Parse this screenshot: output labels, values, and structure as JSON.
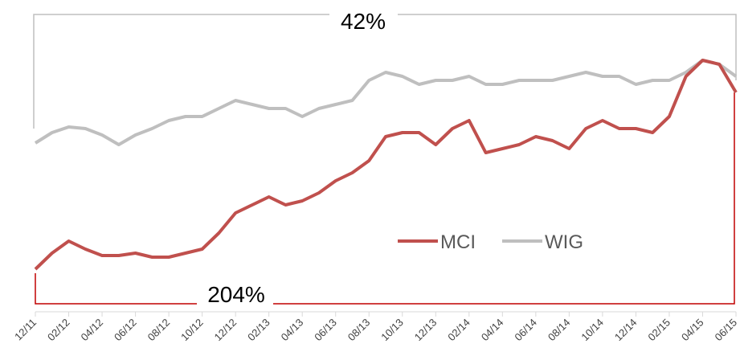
{
  "chart_data": {
    "type": "line",
    "categories": [
      "12/11",
      null,
      "02/12",
      null,
      "04/12",
      null,
      "06/12",
      null,
      "08/12",
      null,
      "10/12",
      null,
      "12/12",
      null,
      "02/13",
      null,
      "04/13",
      null,
      "06/13",
      null,
      "08/13",
      null,
      "10/13",
      null,
      "12/13",
      null,
      "02/14",
      null,
      "04/14",
      null,
      "06/14",
      null,
      "08/14",
      null,
      "10/14",
      null,
      "12/14",
      null,
      "02/15",
      null,
      "04/15",
      null,
      "06/15"
    ],
    "series": [
      {
        "name": "MCI",
        "color": "#c0504d",
        "values": [
          65,
          85,
          100,
          90,
          82,
          82,
          85,
          80,
          80,
          85,
          90,
          110,
          135,
          145,
          155,
          145,
          150,
          160,
          175,
          185,
          200,
          230,
          235,
          235,
          220,
          240,
          250,
          210,
          215,
          220,
          230,
          225,
          215,
          240,
          250,
          240,
          240,
          235,
          255,
          305,
          325,
          320,
          285
        ]
      },
      {
        "name": "WIG",
        "color": "#bfbfbf",
        "values": [
          222,
          235,
          242,
          240,
          232,
          220,
          232,
          240,
          250,
          255,
          255,
          265,
          275,
          270,
          265,
          265,
          255,
          265,
          270,
          275,
          300,
          310,
          305,
          295,
          300,
          300,
          305,
          295,
          295,
          300,
          300,
          300,
          305,
          310,
          305,
          305,
          295,
          300,
          300,
          310,
          325,
          320,
          305
        ]
      }
    ],
    "ylim": [
      0,
      400
    ],
    "annotations": [
      "42%",
      "204%"
    ]
  }
}
